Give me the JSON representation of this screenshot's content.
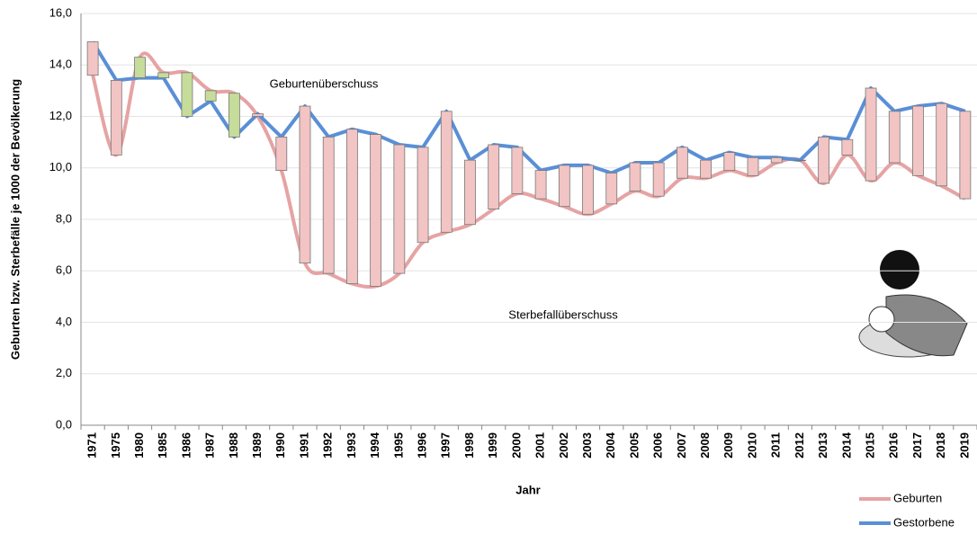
{
  "chart_data": {
    "type": "line",
    "y_label": "Geburten bzw. Sterbefälle je 1000 der Bevölkerung",
    "x_label": "Jahr",
    "annotations": [
      "Geburtenüberschuss",
      "Sterbefallüberschuss"
    ],
    "categories": [
      "1971",
      "1975",
      "1980",
      "1985",
      "1986",
      "1987",
      "1988",
      "1989",
      "1990",
      "1991",
      "1992",
      "1993",
      "1994",
      "1995",
      "1996",
      "1997",
      "1998",
      "1999",
      "2000",
      "2001",
      "2002",
      "2003",
      "2004",
      "2005",
      "2006",
      "2007",
      "2008",
      "2009",
      "2010",
      "2011",
      "2012",
      "2013",
      "2014",
      "2015",
      "2016",
      "2017",
      "2018",
      "2019"
    ],
    "series": [
      {
        "name": "Geburten",
        "color": "#e6a3a3",
        "values": [
          13.6,
          10.5,
          14.3,
          13.7,
          13.7,
          13.0,
          12.9,
          12.0,
          9.9,
          6.3,
          5.9,
          5.5,
          5.4,
          5.9,
          7.1,
          7.5,
          7.8,
          8.4,
          9.0,
          8.8,
          8.5,
          8.2,
          8.6,
          9.1,
          8.9,
          9.6,
          9.6,
          9.9,
          9.7,
          10.2,
          10.3,
          9.4,
          10.5,
          9.5,
          10.2,
          9.7,
          9.3,
          8.8
        ]
      },
      {
        "name": "Gestorbene",
        "color": "#5a8fd6",
        "values": [
          14.9,
          13.4,
          13.5,
          13.5,
          12.0,
          12.6,
          11.2,
          12.1,
          11.2,
          12.4,
          11.2,
          11.5,
          11.3,
          10.9,
          10.8,
          12.2,
          10.3,
          10.9,
          10.8,
          9.9,
          10.1,
          10.1,
          9.8,
          10.2,
          10.2,
          10.8,
          10.3,
          10.6,
          10.4,
          10.4,
          10.3,
          11.2,
          11.1,
          13.1,
          12.2,
          12.4,
          12.5,
          12.2
        ]
      }
    ],
    "up_color": "#c6dc9a",
    "down_color": "#f2c4c4",
    "ylim": [
      0,
      16
    ],
    "yticks": [
      {
        "value": 0,
        "label": "0,0"
      },
      {
        "value": 2,
        "label": "2,0"
      },
      {
        "value": 4,
        "label": "4,0"
      },
      {
        "value": 6,
        "label": "6,0"
      },
      {
        "value": 8,
        "label": "8,0"
      },
      {
        "value": 10,
        "label": "10,0"
      },
      {
        "value": 12,
        "label": "12,0"
      },
      {
        "value": 14,
        "label": "14,0"
      },
      {
        "value": 16,
        "label": "16,0"
      }
    ],
    "grid": true,
    "legend": "bottom-right"
  }
}
